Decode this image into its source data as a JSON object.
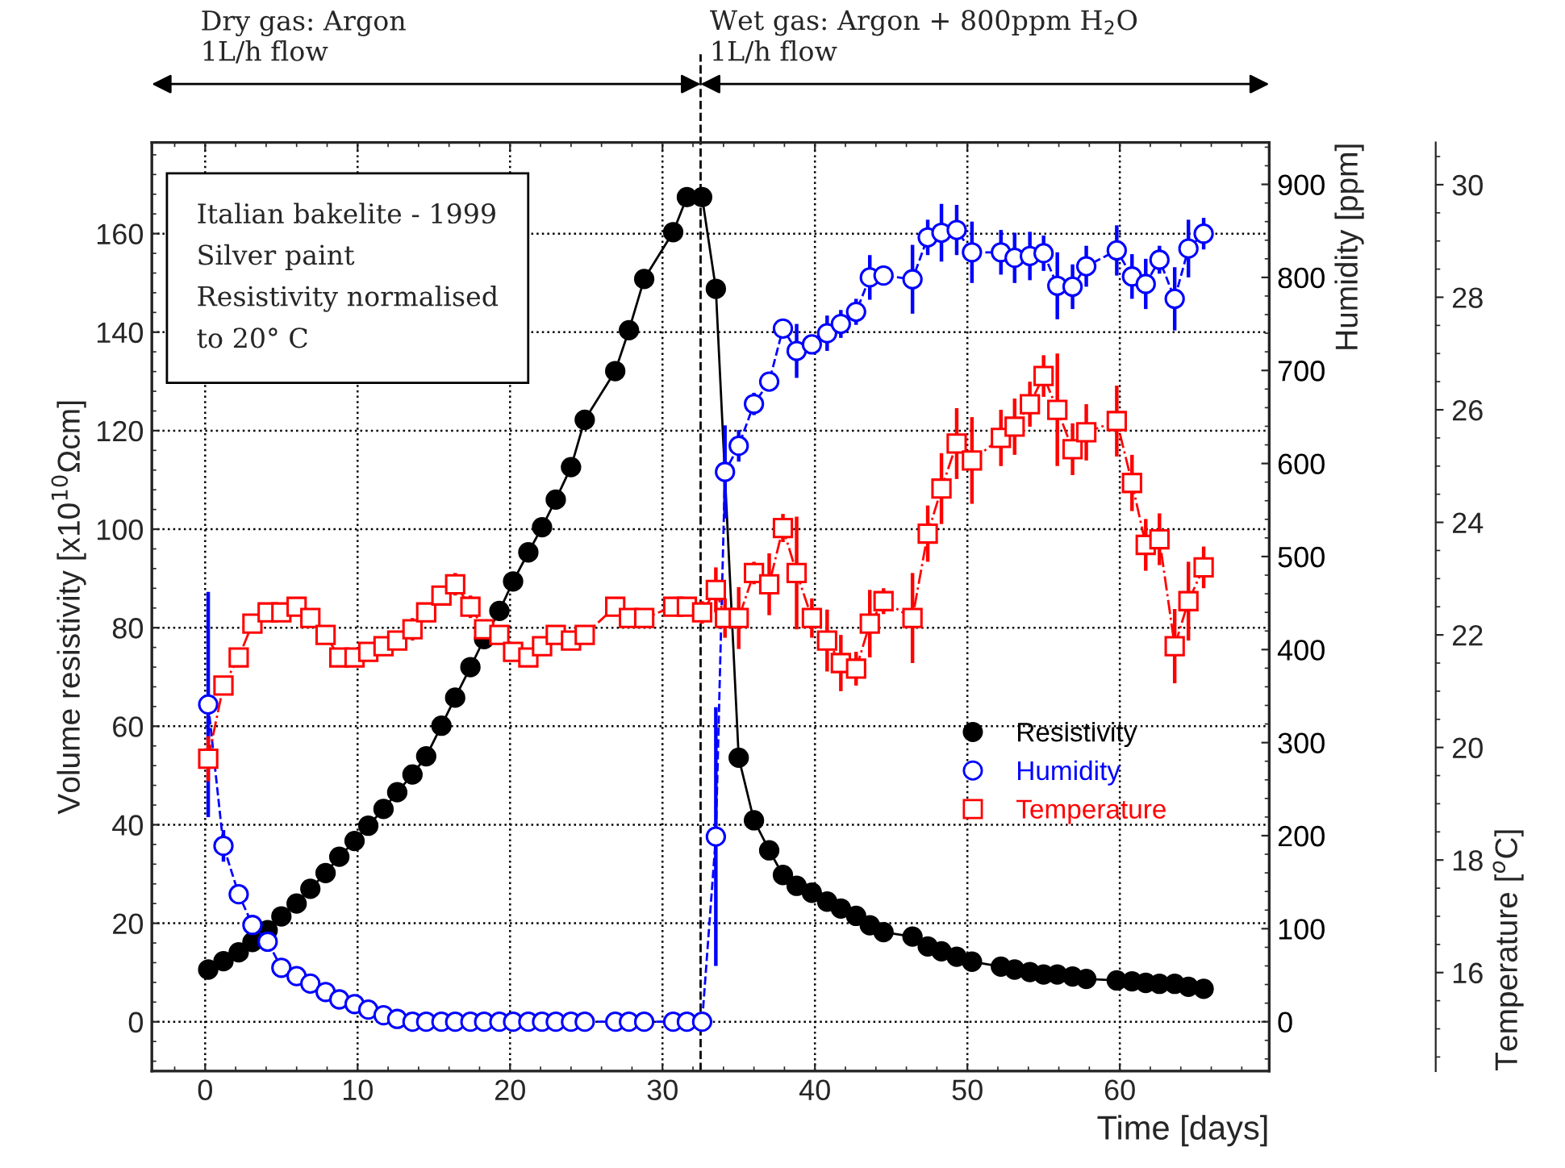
{
  "chart_data": {
    "type": "line",
    "xlabel": "Time [days]",
    "ylabel": "Volume resistivity [x10$^{10}$Ωcm]",
    "y2label": "Humidity [ppm]",
    "y3label": "Temperature [$^{o}$C]",
    "xlim": [
      -3.5,
      69.8
    ],
    "xticks": [
      0,
      10,
      20,
      30,
      40,
      50,
      60
    ],
    "ylim": [
      -10,
      178.5
    ],
    "yticks": [
      0,
      20,
      40,
      60,
      80,
      100,
      120,
      140,
      160
    ],
    "y2lim": [
      -53,
      945
    ],
    "y2ticks": [
      0,
      100,
      200,
      300,
      400,
      500,
      600,
      700,
      800,
      900
    ],
    "y3lim": [
      14.25,
      30.75
    ],
    "y3ticks": [
      16,
      18,
      20,
      22,
      24,
      26,
      28,
      30
    ],
    "grid": true,
    "legend": "bottom right",
    "ref_lines": [
      {
        "axis": "x",
        "value": 32.5,
        "label": null,
        "line_style": "dashed",
        "color": "#000000"
      }
    ],
    "annotations": [
      "Italian bakelite - 1999\nSilver paint\nResistivity normalised\nto 20° C",
      "Dry gas: Argon\n1L/h flow",
      "Wet gas: Argon + 800ppm H$_{2}$O\n1L/h flow"
    ],
    "series": [
      {
        "name": "Resistivity",
        "color": "#000000",
        "marker": "circle",
        "line_style": "solid",
        "x": [
          0.2,
          1.2,
          2.2,
          3.1,
          4.1,
          5.0,
          6.0,
          6.9,
          7.9,
          8.8,
          9.8,
          10.7,
          11.7,
          12.6,
          13.6,
          14.5,
          15.5,
          16.4,
          17.4,
          18.3,
          19.3,
          20.2,
          21.2,
          22.1,
          23.0,
          24.0,
          24.9,
          26.9,
          27.8,
          28.8,
          30.7,
          31.6,
          32.6,
          33.5,
          35.0,
          36.0,
          37.0,
          37.9,
          38.8,
          39.8,
          40.8,
          41.7,
          42.7,
          43.6,
          44.5,
          46.4,
          47.4,
          48.3,
          49.3,
          50.3,
          52.2,
          53.1,
          54.1,
          55.0,
          55.9,
          56.9,
          57.8,
          59.8,
          60.8,
          61.7,
          62.6,
          63.6,
          64.5,
          65.5
        ],
        "values": [
          10.6,
          12.3,
          14.1,
          16.2,
          18.6,
          21.4,
          24.0,
          27.0,
          30.2,
          33.5,
          36.7,
          39.8,
          43.2,
          46.6,
          50.2,
          53.9,
          60.1,
          65.8,
          72.0,
          77.7,
          83.4,
          89.4,
          95.3,
          100.4,
          106.0,
          112.6,
          122.2,
          132.1,
          140.4,
          150.8,
          160.3,
          167.4,
          167.4,
          148.8,
          53.6,
          40.9,
          34.8,
          29.8,
          27.6,
          26.2,
          24.4,
          23.0,
          21.5,
          19.6,
          18.2,
          17.3,
          15.3,
          14.3,
          13.2,
          12.2,
          11.2,
          10.6,
          10.1,
          9.6,
          9.6,
          9.2,
          8.7,
          8.4,
          8.2,
          7.9,
          7.7,
          7.7,
          7.1,
          6.7
        ]
      },
      {
        "name": "Humidity",
        "color": "#0000ff",
        "marker": "circle",
        "line_style": "dashed",
        "axis": "y2",
        "x": [
          0.2,
          1.2,
          2.2,
          3.1,
          4.1,
          5.0,
          6.0,
          6.9,
          7.9,
          8.8,
          9.8,
          10.7,
          11.7,
          12.6,
          13.6,
          14.5,
          15.5,
          16.4,
          17.4,
          18.3,
          19.3,
          20.2,
          21.2,
          22.1,
          23.0,
          24.0,
          24.9,
          26.9,
          27.8,
          28.8,
          30.7,
          31.6,
          32.6,
          33.5,
          34.1,
          35.0,
          36.0,
          37.0,
          37.9,
          38.8,
          39.8,
          40.8,
          41.7,
          42.7,
          43.6,
          44.5,
          46.4,
          47.4,
          48.3,
          49.3,
          50.3,
          52.2,
          53.1,
          54.1,
          55.0,
          55.9,
          56.9,
          57.8,
          59.8,
          60.8,
          61.7,
          62.6,
          63.6,
          64.5,
          65.5
        ],
        "values": [
          341,
          189,
          137,
          104,
          86,
          58,
          49,
          41,
          32,
          24,
          19,
          13,
          7,
          3,
          0,
          0,
          0,
          0,
          0,
          0,
          0,
          0,
          0,
          0,
          0,
          0,
          0,
          0,
          0,
          0,
          0,
          0,
          0,
          199,
          591,
          619,
          664,
          688,
          745,
          721,
          728,
          740,
          750,
          763,
          800,
          802,
          798,
          843,
          848,
          851,
          827,
          827,
          821,
          823,
          826,
          791,
          790,
          812,
          829,
          801,
          793,
          819,
          777,
          831,
          847
        ],
        "errors": [
          121,
          17,
          null,
          null,
          null,
          null,
          null,
          null,
          null,
          null,
          null,
          null,
          null,
          null,
          null,
          null,
          null,
          null,
          null,
          null,
          null,
          null,
          null,
          null,
          null,
          null,
          null,
          null,
          null,
          null,
          null,
          null,
          null,
          139,
          50,
          17,
          12,
          10,
          null,
          29,
          10,
          19,
          15,
          14,
          24,
          10,
          37,
          19,
          31,
          27,
          33,
          24,
          27,
          26,
          19,
          36,
          24,
          22,
          27,
          24,
          27,
          15,
          34,
          31,
          17
        ]
      },
      {
        "name": "Temperature",
        "color": "#ff0000",
        "marker": "square",
        "line_style": "dashdot",
        "axis": "y3",
        "x": [
          0.2,
          1.2,
          2.2,
          3.1,
          4.1,
          5.0,
          6.0,
          6.9,
          7.9,
          8.8,
          9.8,
          10.7,
          11.7,
          12.6,
          13.6,
          14.5,
          15.5,
          16.4,
          17.4,
          18.3,
          19.3,
          20.2,
          21.2,
          22.1,
          23.0,
          24.0,
          24.9,
          26.9,
          27.8,
          28.8,
          30.7,
          31.6,
          32.6,
          33.5,
          34.1,
          35.0,
          36.0,
          37.0,
          37.9,
          38.8,
          39.8,
          40.8,
          41.7,
          42.7,
          43.6,
          44.5,
          46.4,
          47.4,
          48.3,
          49.3,
          50.3,
          52.2,
          53.1,
          54.1,
          55.0,
          55.9,
          56.9,
          57.8,
          59.8,
          60.8,
          61.7,
          62.6,
          63.6,
          64.5,
          65.5
        ],
        "values": [
          19.8,
          21.1,
          21.6,
          22.2,
          22.4,
          22.4,
          22.5,
          22.3,
          22.0,
          21.6,
          21.6,
          21.7,
          21.8,
          21.9,
          22.1,
          22.4,
          22.7,
          22.9,
          22.5,
          22.1,
          22.0,
          21.7,
          21.6,
          21.8,
          22.0,
          21.9,
          22.0,
          22.5,
          22.3,
          22.3,
          22.5,
          22.5,
          22.4,
          22.8,
          22.3,
          22.3,
          23.1,
          22.9,
          23.9,
          23.1,
          22.3,
          21.9,
          21.5,
          21.4,
          22.2,
          22.6,
          22.3,
          23.8,
          24.6,
          25.4,
          25.1,
          25.5,
          25.7,
          26.1,
          26.6,
          26.0,
          25.3,
          25.6,
          25.8,
          24.7,
          23.6,
          23.7,
          21.8,
          22.6,
          23.2
        ],
        "errors": [
          0.4,
          null,
          null,
          null,
          null,
          null,
          null,
          null,
          null,
          null,
          null,
          null,
          null,
          null,
          0.2,
          null,
          null,
          0.2,
          0.2,
          null,
          null,
          null,
          null,
          null,
          null,
          null,
          null,
          null,
          null,
          null,
          null,
          null,
          0.2,
          0.4,
          0.35,
          0.55,
          0.2,
          0.55,
          0.25,
          1.0,
          0.35,
          0.55,
          0.5,
          0.3,
          0.6,
          0.23,
          0.8,
          0.5,
          0.63,
          0.63,
          0.77,
          0.5,
          0.5,
          0.4,
          0.37,
          1.0,
          0.46,
          0.5,
          0.63,
          0.5,
          0.46,
          0.46,
          0.66,
          0.7,
          0.37
        ]
      }
    ]
  }
}
